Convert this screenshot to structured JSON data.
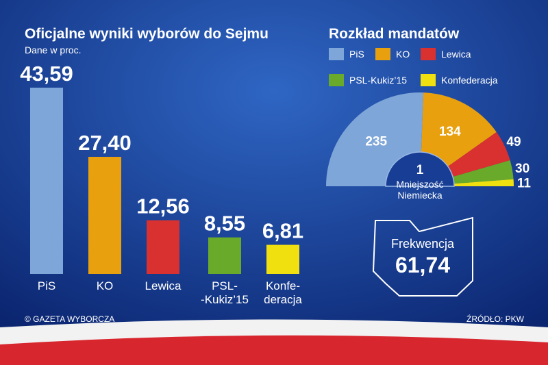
{
  "chart_data": [
    {
      "type": "bar",
      "title": "Oficjalne wyniki wyborów do Sejmu",
      "subtitle": "Dane w proc.",
      "categories": [
        "PiS",
        "KO",
        "Lewica",
        "PSL-\n-Kukiz’15",
        "Konfe-\nderacja"
      ],
      "values": [
        43.59,
        27.4,
        12.56,
        8.55,
        6.81
      ],
      "value_labels": [
        "43,59",
        "27,40",
        "12,56",
        "8,55",
        "6,81"
      ],
      "colors": [
        "#7ea6d8",
        "#e8a00e",
        "#d93030",
        "#6aaa2a",
        "#f0e010"
      ]
    },
    {
      "type": "parliament",
      "title": "Rozkład mandatów",
      "categories": [
        "PiS",
        "KO",
        "Lewica",
        "PSL-Kukiz’15",
        "Konfederacja"
      ],
      "values": [
        235,
        134,
        49,
        30,
        11
      ],
      "colors": [
        "#7ea6d8",
        "#e8a00e",
        "#d93030",
        "#6aaa2a",
        "#f0e010"
      ],
      "center": {
        "label": "Mniejszość\nNiemiecka",
        "value": 1
      }
    }
  ],
  "turnout": {
    "label": "Frekwencja",
    "value": 61.74,
    "value_label": "61,74"
  },
  "footer": {
    "left": "© GAZETA WYBORCZA",
    "right": "ŹRÓDŁO: PKW"
  }
}
